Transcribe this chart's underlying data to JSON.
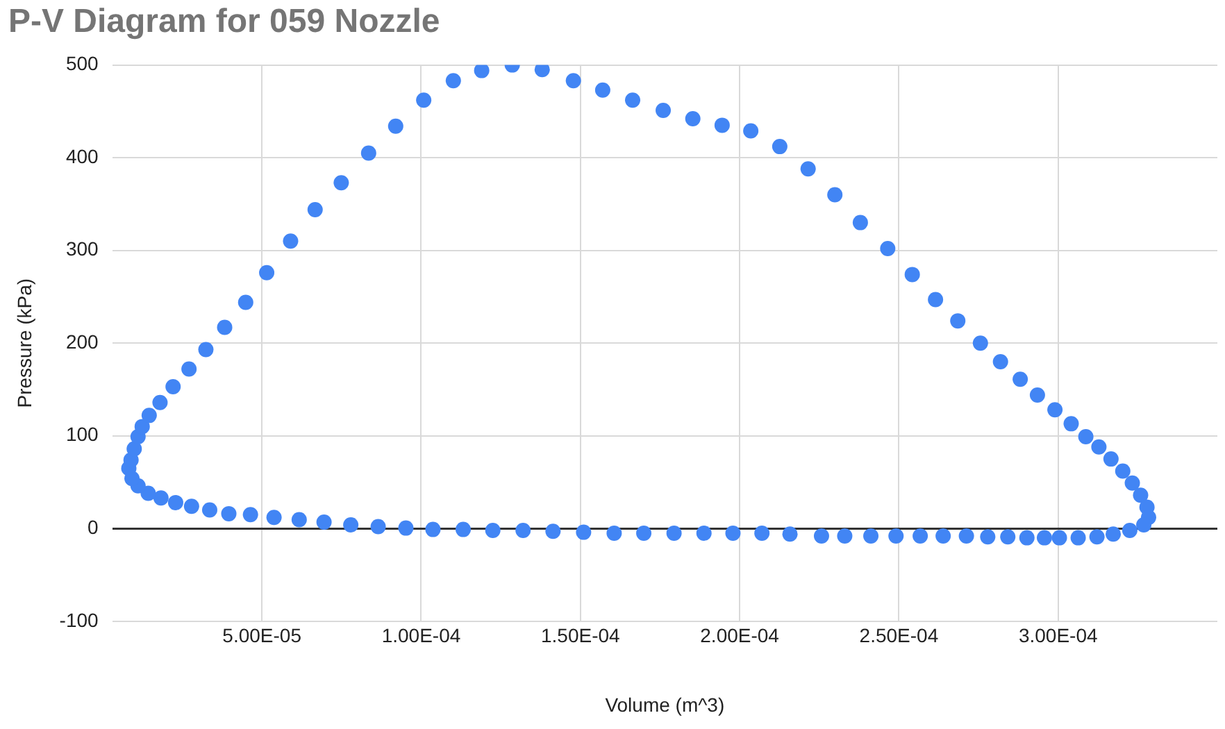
{
  "chart_data": {
    "type": "scatter",
    "title": "P-V Diagram for 059 Nozzle",
    "xlabel": "Volume (m^3)",
    "ylabel": "Pressure (kPa)",
    "xlim": [
      3e-06,
      0.00035
    ],
    "xticks": [
      {
        "value": 5e-05,
        "label": "5.00E-05"
      },
      {
        "value": 0.0001,
        "label": "1.00E-04"
      },
      {
        "value": 0.00015,
        "label": "1.50E-04"
      },
      {
        "value": 0.0002,
        "label": "2.00E-04"
      },
      {
        "value": 0.00025,
        "label": "2.50E-04"
      },
      {
        "value": 0.0003,
        "label": "3.00E-04"
      }
    ],
    "ylim": [
      -100,
      500
    ],
    "yticks": [
      -100,
      0,
      100,
      200,
      300,
      400,
      500
    ],
    "grid": true,
    "legend": false,
    "marker": "circle",
    "series": [
      {
        "color": "#4285f4",
        "x": [
          8.2e-06,
          8.9e-06,
          9.9e-06,
          1.11e-05,
          1.24e-05,
          1.46e-05,
          1.8e-05,
          2.21e-05,
          2.71e-05,
          3.24e-05,
          3.83e-05,
          4.49e-05,
          5.15e-05,
          5.9e-05,
          6.67e-05,
          7.49e-05,
          8.35e-05,
          9.2e-05,
          0.0001008,
          0.0001101,
          0.000119,
          0.0001286,
          0.000138,
          0.0001478,
          0.000157,
          0.0001664,
          0.000176,
          0.0001853,
          0.0001945,
          0.0002035,
          0.0002126,
          0.0002215,
          0.0002299,
          0.0002379,
          0.0002465,
          0.0002542,
          0.0002615,
          0.0002685,
          0.0002756,
          0.0002819,
          0.0002881,
          0.0002935,
          0.000299,
          0.0003041,
          0.0003087,
          0.0003128,
          0.0003166,
          0.0003203,
          0.0003233,
          0.0003259,
          0.0003279,
          0.0003284,
          0.0003269,
          0.0003225,
          0.0003173,
          0.0003122,
          0.0003063,
          0.0003004,
          0.0002957,
          0.0002902,
          0.0002842,
          0.0002779,
          0.0002712,
          0.0002639,
          0.0002567,
          0.0002491,
          0.0002412,
          0.000233,
          0.0002257,
          0.0002158,
          0.000207,
          0.0001979,
          0.0001888,
          0.0001794,
          0.0001699,
          0.0001606,
          0.000151,
          0.0001414,
          0.000132,
          0.0001225,
          0.0001132,
          0.0001037,
          9.52e-05,
          8.65e-05,
          7.79e-05,
          6.95e-05,
          6.17e-05,
          5.38e-05,
          4.64e-05,
          3.96e-05,
          3.36e-05,
          2.79e-05,
          2.29e-05,
          1.83e-05,
          1.43e-05,
          1.11e-05,
          9.2e-06
        ],
        "values": [
          65,
          74,
          86,
          99,
          110,
          122,
          136,
          153,
          172,
          193,
          217,
          244,
          276,
          310,
          344,
          373,
          405,
          434,
          462,
          483,
          494,
          500,
          495,
          483,
          473,
          462,
          451,
          442,
          435,
          429,
          412,
          388,
          360,
          330,
          302,
          274,
          247,
          224,
          200,
          180,
          161,
          144,
          128,
          113,
          99,
          88,
          75,
          62,
          49,
          36,
          23,
          12,
          4,
          -2,
          -6,
          -9,
          -10,
          -10,
          -10,
          -10,
          -9,
          -9,
          -8,
          -8,
          -8,
          -8,
          -8,
          -8,
          -8,
          -6,
          -5,
          -5,
          -5,
          -5,
          -5,
          -5,
          -4,
          -3,
          -2,
          -2,
          -1,
          -1,
          0.5,
          2,
          4,
          7,
          9.5,
          12,
          15,
          16,
          20,
          24,
          28,
          33,
          38,
          46,
          54
        ]
      }
    ]
  }
}
